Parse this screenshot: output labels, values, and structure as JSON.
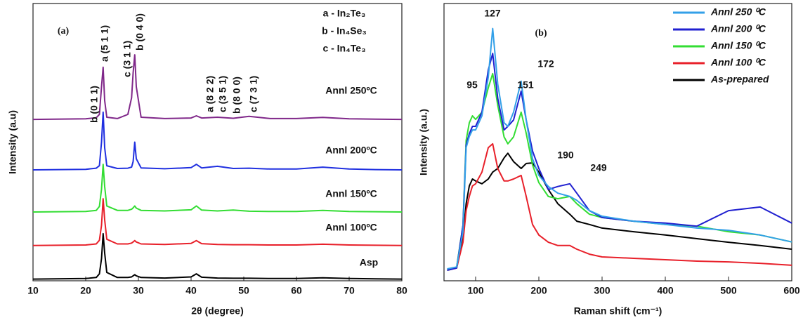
{
  "chart_data": [
    {
      "type": "line",
      "xlabel": "2θ (degree)",
      "ylabel": "Intensity (a.u)",
      "xlim": [
        10,
        80
      ],
      "xticks": [
        10,
        20,
        30,
        40,
        50,
        60,
        70,
        80
      ],
      "ylim": [
        0,
        100
      ],
      "x": [
        10,
        20,
        22,
        22.6,
        23.0,
        23.3,
        23.6,
        24,
        26,
        28,
        28.7,
        29.0,
        29.3,
        29.6,
        30.5,
        35,
        40,
        41,
        42,
        45,
        48,
        51,
        55,
        60,
        65,
        70,
        75,
        80
      ],
      "annotations": [
        "(a)",
        "b (0 1 1)",
        "a (5 1 1)",
        "c (3 1 1)",
        "b (0 4 0)",
        "a (8 2 2)",
        "c (3 5 1)",
        "b (8 0 0)",
        "c (7 3 1)",
        "a - In₂Te₃",
        "b - In₄Se₃",
        "c - In₄Te₃"
      ],
      "series": [
        {
          "name": "Asp",
          "color": "#000000",
          "values": [
            0.6,
            0.8,
            1.2,
            2.5,
            8,
            17,
            10,
            3,
            1.2,
            1.2,
            1.4,
            1.8,
            2.2,
            1.8,
            1.2,
            1,
            1.4,
            2.5,
            1.3,
            1,
            0.9,
            0.9,
            0.8,
            0.8,
            1.1,
            0.8,
            0.7,
            0.6
          ]
        },
        {
          "name": "Annl 100ºC",
          "color": "#e8202a",
          "values": [
            12.7,
            12.9,
            13.3,
            14.6,
            20,
            29.6,
            22,
            15,
            13.3,
            13.3,
            13.6,
            14,
            14.5,
            14,
            13.3,
            13.1,
            13.5,
            14.5,
            13.4,
            13.1,
            13,
            13,
            12.9,
            12.9,
            13.2,
            12.9,
            12.8,
            12.7
          ]
        },
        {
          "name": "Annl 150ºC",
          "color": "#33dd33",
          "values": [
            24.8,
            25,
            25.4,
            26.8,
            33,
            42,
            34,
            27,
            25.4,
            25.4,
            25.8,
            26.3,
            27,
            26.2,
            25.4,
            25.2,
            25.6,
            27,
            25.5,
            25.2,
            25.5,
            25.1,
            25,
            25,
            25.4,
            25,
            24.9,
            24.8
          ]
        },
        {
          "name": "Annl 200ºC",
          "color": "#2030e0",
          "values": [
            40,
            40.2,
            40.6,
            41.5,
            50,
            60.8,
            48,
            41.5,
            40.5,
            40.6,
            41,
            43,
            50,
            44,
            40.7,
            40.4,
            40.8,
            42,
            40.7,
            41.3,
            40.5,
            40.6,
            40.3,
            40.3,
            41,
            40.3,
            40.1,
            40
          ]
        },
        {
          "name": "Annl 250ºC",
          "color": "#80288a",
          "values": [
            58.2,
            58.4,
            58.8,
            60,
            70,
            77,
            65,
            59,
            58.5,
            60,
            66,
            75,
            81.5,
            70,
            59,
            58.5,
            58.7,
            59.5,
            58.7,
            59,
            58.6,
            59.3,
            58.5,
            58.5,
            58.9,
            58.4,
            58.3,
            58.2
          ]
        }
      ]
    },
    {
      "type": "line",
      "xlabel": "Raman shift (cm⁻¹)",
      "ylabel": "Intensity (a.u.)",
      "xlim": [
        50,
        600
      ],
      "xticks": [
        100,
        200,
        300,
        400,
        500,
        600
      ],
      "ylim": [
        0,
        100
      ],
      "x": [
        55,
        70,
        80,
        85,
        90,
        95,
        100,
        110,
        120,
        127,
        135,
        145,
        151,
        160,
        172,
        180,
        190,
        200,
        215,
        230,
        249,
        260,
        280,
        300,
        350,
        400,
        450,
        500,
        550,
        600
      ],
      "annotations": [
        "(b)",
        "127",
        "95",
        "151",
        "172",
        "190",
        "249"
      ],
      "series": [
        {
          "name": "Annl 250 ⁰C",
          "color": "#33a0e8",
          "values": [
            4.3,
            5,
            17.7,
            48,
            52,
            54.4,
            54.4,
            59.5,
            73.4,
            91,
            70.9,
            57,
            55.7,
            60.8,
            72,
            58,
            44,
            38,
            34,
            31.6,
            30.4,
            29,
            25.3,
            23.3,
            21.5,
            20.3,
            19,
            18.2,
            16.5,
            14
          ]
        },
        {
          "name": "Annl 200 ⁰C",
          "color": "#2020d0",
          "values": [
            3.8,
            4.6,
            20,
            49,
            53,
            55.7,
            55.7,
            60.8,
            76,
            82,
            65.8,
            54.4,
            55.7,
            58,
            68.4,
            58,
            46.8,
            40.5,
            32.9,
            34,
            35,
            31.6,
            25.3,
            22.8,
            21.5,
            20.8,
            19.7,
            25.3,
            26.6,
            20.8
          ]
        },
        {
          "name": "Annl 150 ⁰C",
          "color": "#33dd33",
          "values": [
            3.8,
            5,
            20,
            50.6,
            57,
            59.5,
            58.2,
            60.8,
            69.6,
            74.7,
            63.3,
            51.9,
            49.4,
            51.9,
            60.8,
            53.2,
            41.8,
            35.4,
            30.4,
            29.6,
            30.4,
            27.8,
            24,
            22.8,
            21.5,
            20.3,
            19.7,
            17.7,
            16.5,
            14
          ]
        },
        {
          "name": "Annl 100 ⁰C",
          "color": "#e8202a",
          "values": [
            3.8,
            4.6,
            13.9,
            25.3,
            30.4,
            34.2,
            35,
            39.2,
            48,
            49.4,
            40.5,
            36,
            36,
            36.7,
            38,
            30.4,
            20.3,
            16.5,
            13.9,
            12.7,
            12.7,
            11.4,
            9.6,
            8.6,
            8.1,
            7.6,
            7.1,
            6.8,
            6.3,
            5.6
          ]
        },
        {
          "name": "As-prepared",
          "color": "#000000",
          "values": [
            3.8,
            4.6,
            15.2,
            27.8,
            34.2,
            36.7,
            36,
            35,
            36.7,
            39.2,
            40.5,
            44.3,
            46,
            43,
            40.5,
            42.3,
            42.5,
            39.2,
            32.9,
            27.8,
            24,
            21.5,
            20.3,
            19,
            17.7,
            16.5,
            15.2,
            13.9,
            12.7,
            11.4
          ]
        }
      ]
    }
  ]
}
